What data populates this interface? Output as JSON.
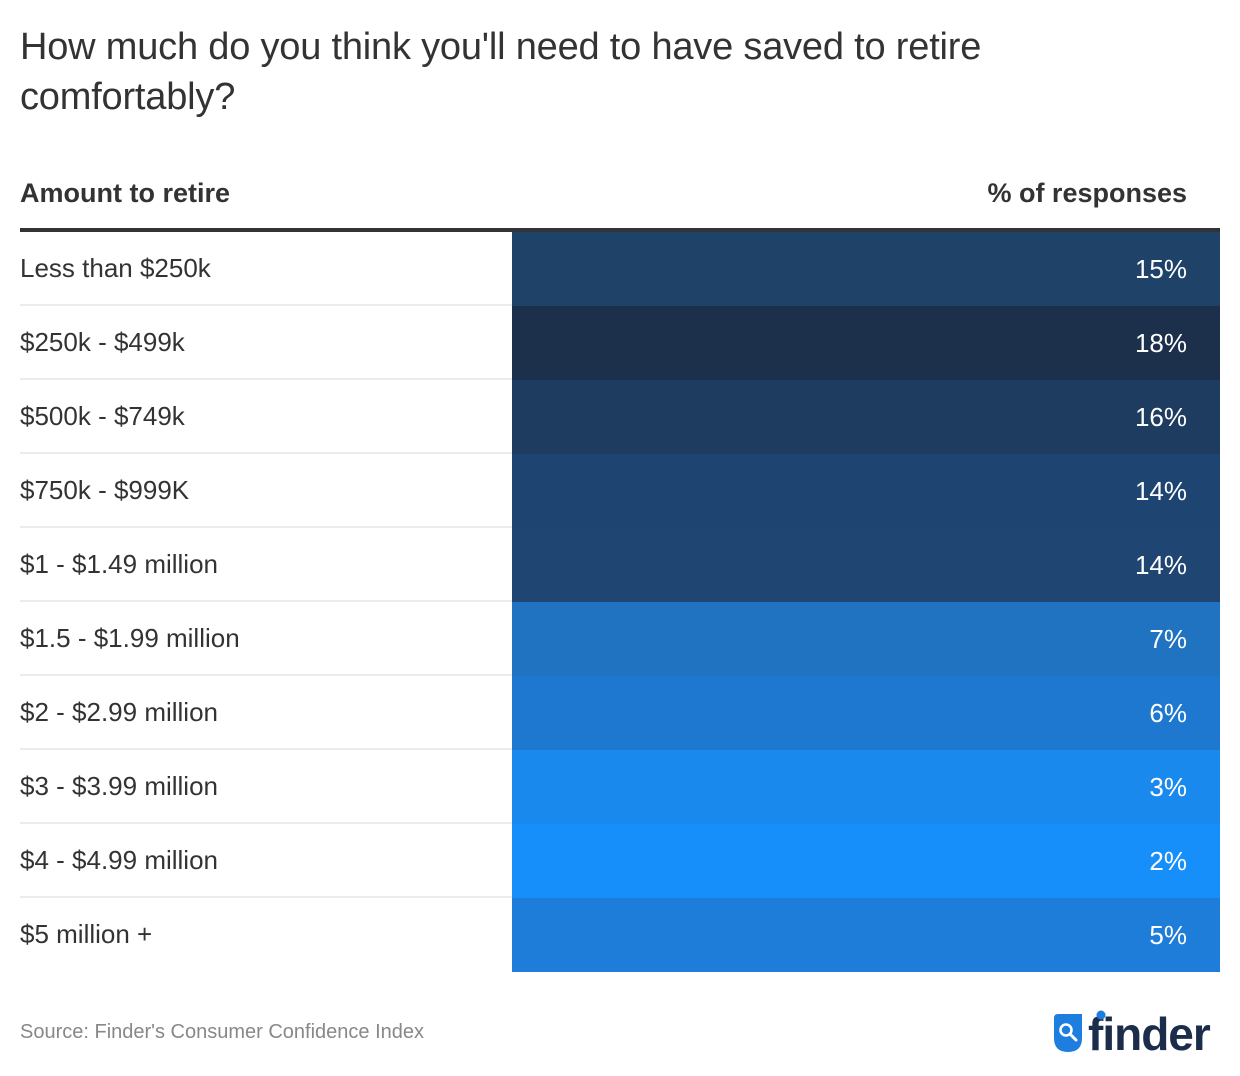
{
  "chart_data": {
    "type": "table",
    "title": "How much do you think you'll need to have saved to retire comfortably?",
    "columns": [
      "Amount to retire",
      "% of responses"
    ],
    "categories": [
      "Less than $250k",
      "$250k - $499k",
      "$500k - $749k",
      "$750k - $999K",
      "$1 - $1.49 million",
      "$1.5 - $1.99 million",
      "$2 - $2.99 million",
      "$3 - $3.99 million",
      "$4 - $4.99 million",
      "$5 million +"
    ],
    "values": [
      15,
      18,
      16,
      14,
      14,
      7,
      6,
      3,
      2,
      5
    ],
    "value_labels": [
      "15%",
      "18%",
      "16%",
      "14%",
      "14%",
      "7%",
      "6%",
      "3%",
      "2%",
      "5%"
    ],
    "cell_colors": [
      "#1f4269",
      "#1c2f4b",
      "#1e3c60",
      "#1e4571",
      "#1f4572",
      "#2073c0",
      "#1f78d0",
      "#1a89ee",
      "#168ffa",
      "#1e7dd8"
    ],
    "unit": "%"
  },
  "footer": {
    "source": "Source: Finder's Consumer Confidence Index",
    "logo_text": "finder"
  },
  "colors": {
    "text": "#333333",
    "rule": "#333333",
    "divider": "#ececec",
    "logo_dark": "#1b2d4a",
    "logo_blue": "#1e7ee0"
  }
}
